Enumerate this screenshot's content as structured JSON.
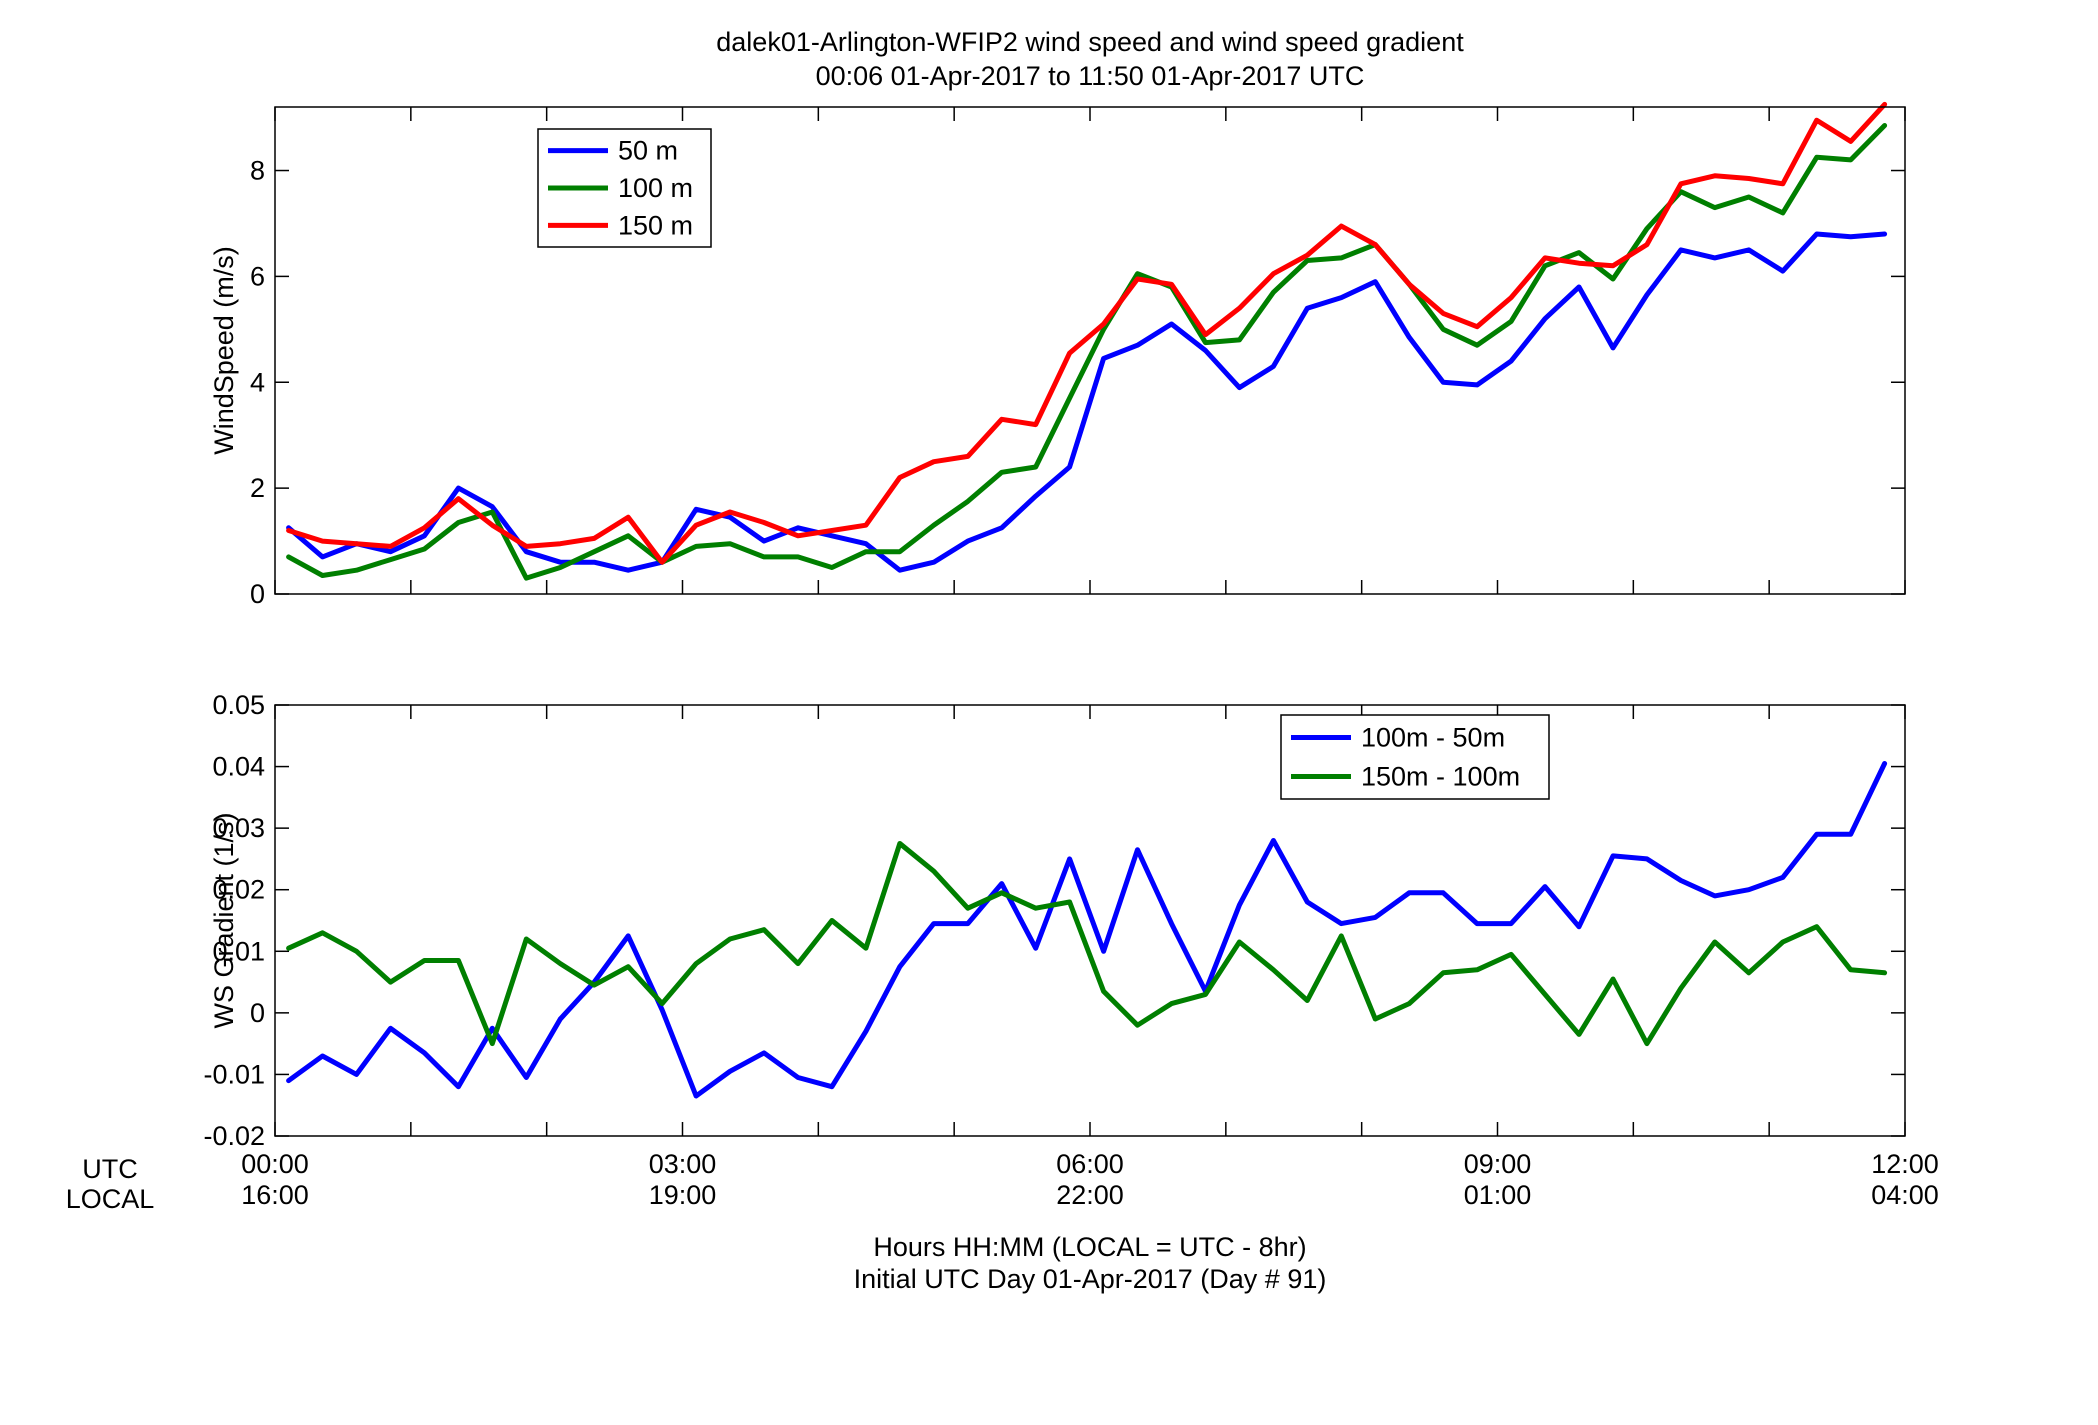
{
  "figure": {
    "title_line1": "dalek01-Arlington-WFIP2  wind speed and wind speed gradient",
    "title_line2": "00:06 01-Apr-2017 to 11:50 01-Apr-2017  UTC",
    "xlabel_line1": "Hours HH:MM  (LOCAL = UTC - 8hr)",
    "xlabel_line2": "Initial UTC Day 01-Apr-2017 (Day # 91)",
    "utc_row_label": "UTC",
    "local_row_label": "LOCAL",
    "x_ticks_utc": [
      "00:00",
      "03:00",
      "06:00",
      "09:00",
      "12:00"
    ],
    "x_ticks_local": [
      "16:00",
      "19:00",
      "22:00",
      "01:00",
      "04:00"
    ]
  },
  "chart_data": [
    {
      "type": "line",
      "ylabel": "WindSpeed (m/s)",
      "xlim": [
        0,
        12
      ],
      "ylim": [
        0,
        9.2
      ],
      "yticks": [
        0,
        2,
        4,
        6,
        8
      ],
      "ytick_labels": [
        "0",
        "2",
        "4",
        "6",
        "8"
      ],
      "x_hours": [
        0.1,
        0.35,
        0.6,
        0.85,
        1.1,
        1.35,
        1.6,
        1.85,
        2.1,
        2.35,
        2.6,
        2.85,
        3.1,
        3.35,
        3.6,
        3.85,
        4.1,
        4.35,
        4.6,
        4.85,
        5.1,
        5.35,
        5.6,
        5.85,
        6.1,
        6.35,
        6.6,
        6.85,
        7.1,
        7.35,
        7.6,
        7.85,
        8.1,
        8.35,
        8.6,
        8.85,
        9.1,
        9.35,
        9.6,
        9.85,
        10.1,
        10.35,
        10.6,
        10.85,
        11.1,
        11.35,
        11.6,
        11.85
      ],
      "legend_placement": "top-left",
      "series": [
        {
          "name": "50 m",
          "color": "#0000ff",
          "values": [
            1.25,
            0.7,
            0.95,
            0.8,
            1.1,
            2.0,
            1.65,
            0.8,
            0.6,
            0.6,
            0.45,
            0.6,
            1.6,
            1.45,
            1.0,
            1.25,
            1.1,
            0.95,
            0.45,
            0.6,
            1.0,
            1.25,
            1.85,
            2.4,
            4.45,
            4.7,
            5.1,
            4.6,
            3.9,
            4.3,
            5.4,
            5.6,
            5.9,
            4.85,
            4.0,
            3.95,
            4.4,
            5.2,
            5.8,
            4.65,
            5.65,
            6.5,
            6.35,
            6.5,
            6.1,
            6.8,
            6.75,
            6.8
          ]
        },
        {
          "name": "100 m",
          "color": "#007f00",
          "values": [
            0.7,
            0.35,
            0.45,
            0.65,
            0.85,
            1.35,
            1.55,
            0.3,
            0.5,
            0.8,
            1.1,
            0.6,
            0.9,
            0.95,
            0.7,
            0.7,
            0.5,
            0.8,
            0.8,
            1.3,
            1.75,
            2.3,
            2.4,
            3.7,
            5.0,
            6.05,
            5.8,
            4.75,
            4.8,
            5.7,
            6.3,
            6.35,
            6.6,
            5.85,
            5.0,
            4.7,
            5.15,
            6.2,
            6.45,
            5.95,
            6.9,
            7.6,
            7.3,
            7.5,
            7.2,
            8.25,
            8.2,
            8.85
          ]
        },
        {
          "name": "150 m",
          "color": "#ff0000",
          "values": [
            1.2,
            1.0,
            0.95,
            0.9,
            1.25,
            1.8,
            1.3,
            0.9,
            0.95,
            1.05,
            1.45,
            0.6,
            1.3,
            1.55,
            1.35,
            1.1,
            1.2,
            1.3,
            2.2,
            2.5,
            2.6,
            3.3,
            3.2,
            4.55,
            5.1,
            5.95,
            5.85,
            4.9,
            5.4,
            6.05,
            6.4,
            6.95,
            6.6,
            5.85,
            5.3,
            5.05,
            5.6,
            6.35,
            6.25,
            6.2,
            6.6,
            7.75,
            7.9,
            7.85,
            7.75,
            8.95,
            8.55,
            9.25
          ]
        }
      ]
    },
    {
      "type": "line",
      "ylabel": "WS Gradient (1/s)",
      "xlim": [
        0,
        12
      ],
      "ylim": [
        -0.02,
        0.05
      ],
      "yticks": [
        -0.02,
        -0.01,
        0,
        0.01,
        0.02,
        0.03,
        0.04,
        0.05
      ],
      "ytick_labels": [
        "-0.02",
        "-0.01",
        "0",
        "0.01",
        "0.02",
        "0.03",
        "0.04",
        "0.05"
      ],
      "x_hours": [
        0.1,
        0.35,
        0.6,
        0.85,
        1.1,
        1.35,
        1.6,
        1.85,
        2.1,
        2.35,
        2.6,
        2.85,
        3.1,
        3.35,
        3.6,
        3.85,
        4.1,
        4.35,
        4.6,
        4.85,
        5.1,
        5.35,
        5.6,
        5.85,
        6.1,
        6.35,
        6.6,
        6.85,
        7.1,
        7.35,
        7.6,
        7.85,
        8.1,
        8.35,
        8.6,
        8.85,
        9.1,
        9.35,
        9.6,
        9.85,
        10.1,
        10.35,
        10.6,
        10.85,
        11.1,
        11.35,
        11.6,
        11.85
      ],
      "legend_placement": "top-right",
      "series": [
        {
          "name": "100m - 50m",
          "color": "#0000ff",
          "values": [
            -0.011,
            -0.007,
            -0.01,
            -0.0025,
            -0.0065,
            -0.012,
            -0.0025,
            -0.0105,
            -0.001,
            0.005,
            0.0125,
            0.0005,
            -0.0135,
            -0.0095,
            -0.0065,
            -0.0105,
            -0.012,
            -0.003,
            0.0075,
            0.0145,
            0.0145,
            0.021,
            0.0105,
            0.025,
            0.01,
            0.0265,
            0.0145,
            0.0035,
            0.0175,
            0.028,
            0.018,
            0.0145,
            0.0155,
            0.0195,
            0.0195,
            0.0145,
            0.0145,
            0.0205,
            0.014,
            0.0255,
            0.025,
            0.0215,
            0.019,
            0.02,
            0.022,
            0.029,
            0.029,
            0.0405
          ]
        },
        {
          "name": "150m - 100m",
          "color": "#007f00",
          "values": [
            0.0105,
            0.013,
            0.01,
            0.005,
            0.0085,
            0.0085,
            -0.005,
            0.012,
            0.008,
            0.0045,
            0.0075,
            0.0015,
            0.008,
            0.012,
            0.0135,
            0.008,
            0.015,
            0.0105,
            0.0275,
            0.023,
            0.017,
            0.0195,
            0.017,
            0.018,
            0.0035,
            -0.002,
            0.0015,
            0.003,
            0.0115,
            0.007,
            0.002,
            0.0125,
            -0.001,
            0.0015,
            0.0065,
            0.007,
            0.0095,
            0.003,
            -0.0035,
            0.0055,
            -0.005,
            0.004,
            0.0115,
            0.0065,
            0.0115,
            0.014,
            0.007,
            0.0065
          ]
        }
      ]
    }
  ]
}
